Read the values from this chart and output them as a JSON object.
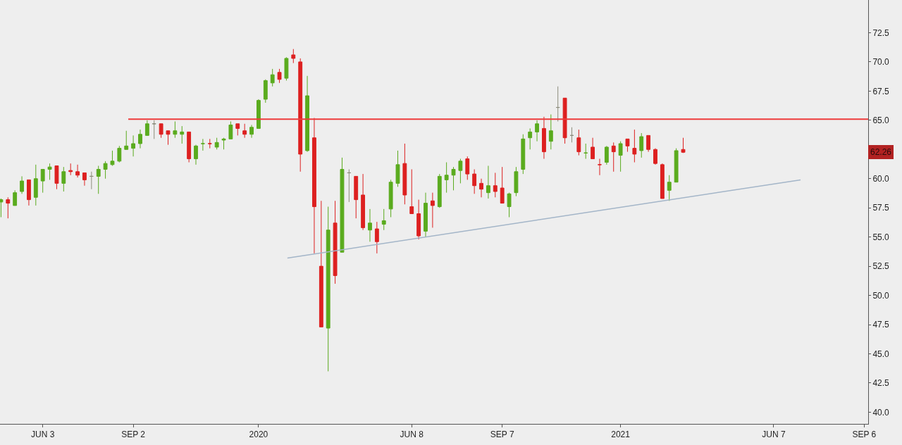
{
  "chart_data": {
    "type": "candlestick",
    "x": [
      "2019-04-22",
      "2019-04-29",
      "2019-05-06",
      "2019-05-13",
      "2019-05-20",
      "2019-05-27",
      "2019-06-03",
      "2019-06-10",
      "2019-06-17",
      "2019-06-24",
      "2019-07-01",
      "2019-07-08",
      "2019-07-15",
      "2019-07-22",
      "2019-07-29",
      "2019-08-05",
      "2019-08-12",
      "2019-08-19",
      "2019-08-26",
      "2019-09-02",
      "2019-09-09",
      "2019-09-16",
      "2019-09-23",
      "2019-09-30",
      "2019-10-07",
      "2019-10-14",
      "2019-10-21",
      "2019-10-28",
      "2019-11-04",
      "2019-11-11",
      "2019-11-18",
      "2019-11-25",
      "2019-12-02",
      "2019-12-09",
      "2019-12-16",
      "2019-12-23",
      "2019-12-30",
      "2020-01-06",
      "2020-01-13",
      "2020-01-20",
      "2020-01-27",
      "2020-02-03",
      "2020-02-10",
      "2020-02-17",
      "2020-02-24",
      "2020-03-02",
      "2020-03-09",
      "2020-03-16",
      "2020-03-23",
      "2020-03-30",
      "2020-04-06",
      "2020-04-13",
      "2020-04-20",
      "2020-04-27",
      "2020-05-04",
      "2020-05-11",
      "2020-05-18",
      "2020-05-25",
      "2020-06-01",
      "2020-06-08",
      "2020-06-15",
      "2020-06-22",
      "2020-06-29",
      "2020-07-06",
      "2020-07-13",
      "2020-07-20",
      "2020-07-27",
      "2020-08-03",
      "2020-08-10",
      "2020-08-17",
      "2020-08-24",
      "2020-08-31",
      "2020-09-07",
      "2020-09-14",
      "2020-09-21",
      "2020-09-28",
      "2020-10-05",
      "2020-10-12",
      "2020-10-19",
      "2020-10-26",
      "2020-11-02",
      "2020-11-09",
      "2020-11-16",
      "2020-11-23",
      "2020-11-30",
      "2020-12-07",
      "2020-12-14",
      "2020-12-21",
      "2020-12-28",
      "2021-01-04",
      "2021-01-11",
      "2021-01-18",
      "2021-01-25",
      "2021-02-01",
      "2021-02-08",
      "2021-02-15",
      "2021-02-22",
      "2021-03-01",
      "2021-03-08"
    ],
    "ohlc": [
      [
        58.0,
        58.3,
        56.7,
        58.2
      ],
      [
        58.2,
        58.4,
        56.6,
        57.9
      ],
      [
        57.7,
        59.0,
        57.7,
        58.8
      ],
      [
        58.9,
        60.2,
        58.7,
        59.8
      ],
      [
        59.9,
        59.9,
        57.7,
        58.2
      ],
      [
        58.4,
        61.2,
        57.7,
        60.0
      ],
      [
        59.8,
        60.8,
        58.8,
        60.8
      ],
      [
        60.8,
        61.3,
        59.9,
        61.0
      ],
      [
        61.1,
        61.1,
        59.1,
        59.6
      ],
      [
        59.6,
        61.0,
        58.9,
        60.6
      ],
      [
        60.7,
        61.3,
        60.3,
        60.6
      ],
      [
        60.6,
        61.2,
        60.1,
        60.3
      ],
      [
        60.5,
        60.5,
        59.4,
        59.9
      ],
      [
        60.2,
        60.6,
        59.1,
        60.2
      ],
      [
        60.2,
        61.1,
        58.7,
        60.8
      ],
      [
        60.8,
        61.5,
        60.0,
        61.3
      ],
      [
        61.2,
        62.4,
        61.1,
        61.5
      ],
      [
        61.5,
        62.8,
        61.4,
        62.6
      ],
      [
        62.5,
        64.1,
        62.5,
        62.8
      ],
      [
        62.6,
        63.7,
        61.9,
        63.0
      ],
      [
        63.0,
        64.2,
        62.6,
        63.8
      ],
      [
        63.7,
        65.0,
        63.7,
        64.7
      ],
      [
        64.7,
        65.0,
        63.4,
        64.7
      ],
      [
        64.7,
        64.7,
        63.5,
        63.8
      ],
      [
        64.1,
        64.1,
        62.9,
        63.8
      ],
      [
        63.8,
        64.9,
        63.5,
        64.1
      ],
      [
        63.8,
        64.5,
        63.0,
        64.0
      ],
      [
        64.0,
        64.0,
        61.4,
        61.7
      ],
      [
        61.7,
        62.9,
        61.2,
        62.8
      ],
      [
        63.0,
        63.4,
        62.4,
        63.0
      ],
      [
        63.0,
        63.4,
        62.6,
        63.0
      ],
      [
        62.7,
        63.5,
        62.5,
        63.1
      ],
      [
        63.3,
        63.5,
        62.5,
        63.4
      ],
      [
        63.4,
        64.9,
        63.4,
        64.6
      ],
      [
        64.7,
        64.7,
        63.7,
        64.3
      ],
      [
        64.1,
        64.7,
        63.5,
        63.8
      ],
      [
        63.8,
        64.6,
        63.5,
        64.4
      ],
      [
        64.3,
        66.8,
        64.3,
        66.7
      ],
      [
        66.8,
        68.5,
        66.5,
        68.4
      ],
      [
        68.2,
        69.4,
        67.9,
        68.9
      ],
      [
        69.1,
        69.4,
        68.2,
        68.5
      ],
      [
        68.6,
        70.4,
        68.4,
        70.3
      ],
      [
        70.6,
        71.1,
        69.9,
        70.3
      ],
      [
        70.0,
        70.3,
        60.6,
        62.1
      ],
      [
        62.4,
        68.8,
        62.3,
        67.1
      ],
      [
        63.5,
        65.2,
        53.6,
        57.6
      ],
      [
        52.5,
        58.1,
        47.3,
        47.3
      ],
      [
        47.2,
        57.6,
        43.5,
        55.6
      ],
      [
        56.2,
        58.1,
        51.0,
        51.7
      ],
      [
        53.7,
        61.8,
        53.7,
        60.8
      ],
      [
        60.5,
        60.8,
        58.0,
        60.5
      ],
      [
        60.2,
        60.2,
        56.6,
        58.2
      ],
      [
        58.6,
        60.4,
        55.6,
        55.8
      ],
      [
        55.6,
        57.4,
        54.6,
        56.2
      ],
      [
        55.7,
        56.3,
        53.6,
        54.6
      ],
      [
        56.1,
        57.4,
        55.6,
        56.4
      ],
      [
        57.4,
        59.9,
        56.7,
        59.7
      ],
      [
        59.6,
        62.4,
        59.3,
        61.2
      ],
      [
        61.3,
        63.0,
        57.8,
        58.6
      ],
      [
        57.6,
        60.8,
        57.0,
        57.0
      ],
      [
        57.0,
        58.2,
        54.8,
        55.1
      ],
      [
        55.5,
        58.8,
        55.0,
        57.9
      ],
      [
        58.1,
        58.8,
        55.8,
        57.7
      ],
      [
        57.6,
        60.4,
        57.5,
        60.2
      ],
      [
        59.9,
        61.4,
        58.8,
        60.3
      ],
      [
        60.3,
        61.0,
        59.0,
        60.8
      ],
      [
        60.7,
        61.7,
        59.6,
        61.5
      ],
      [
        61.7,
        61.9,
        59.9,
        60.4
      ],
      [
        60.4,
        60.8,
        58.7,
        59.4
      ],
      [
        59.6,
        60.0,
        58.4,
        59.1
      ],
      [
        58.8,
        61.1,
        58.3,
        59.4
      ],
      [
        59.4,
        60.5,
        58.4,
        58.9
      ],
      [
        59.2,
        61.0,
        57.9,
        57.9
      ],
      [
        57.6,
        58.8,
        56.7,
        58.7
      ],
      [
        58.8,
        61.0,
        58.5,
        60.6
      ],
      [
        60.8,
        63.8,
        60.4,
        63.4
      ],
      [
        63.5,
        64.3,
        62.5,
        64.0
      ],
      [
        64.0,
        65.0,
        63.2,
        64.7
      ],
      [
        64.3,
        65.3,
        61.7,
        62.3
      ],
      [
        63.2,
        65.5,
        62.5,
        64.1
      ],
      [
        66.1,
        67.9,
        64.9,
        66.1
      ],
      [
        66.9,
        66.9,
        63.0,
        63.5
      ],
      [
        63.7,
        64.4,
        63.1,
        63.7
      ],
      [
        63.5,
        64.2,
        62.0,
        62.3
      ],
      [
        62.2,
        63.0,
        61.7,
        62.2
      ],
      [
        62.7,
        63.5,
        61.7,
        61.7
      ],
      [
        61.2,
        61.7,
        60.3,
        61.2
      ],
      [
        61.4,
        62.8,
        61.2,
        62.7
      ],
      [
        62.8,
        63.1,
        60.6,
        62.3
      ],
      [
        62.0,
        63.2,
        60.6,
        63.0
      ],
      [
        63.4,
        63.4,
        62.3,
        62.8
      ],
      [
        62.6,
        64.2,
        61.4,
        62.1
      ],
      [
        62.4,
        63.9,
        61.8,
        63.6
      ],
      [
        63.7,
        63.7,
        62.3,
        62.5
      ],
      [
        62.5,
        62.6,
        61.2,
        61.3
      ],
      [
        61.2,
        61.3,
        58.3,
        58.3
      ],
      [
        59.0,
        60.3,
        58.1,
        59.7
      ],
      [
        59.7,
        62.6,
        59.7,
        62.4
      ],
      [
        62.5,
        63.5,
        62.2,
        62.26
      ]
    ],
    "colors": [
      "#5aab1e",
      "#dd2020",
      "#5aab1e",
      "#5aab1e",
      "#dd2020",
      "#5aab1e",
      "#5aab1e",
      "#5aab1e",
      "#dd2020",
      "#5aab1e",
      "#dd2020",
      "#dd2020",
      "#dd2020",
      "#8c8c7c",
      "#5aab1e",
      "#5aab1e",
      "#5aab1e",
      "#5aab1e",
      "#5aab1e",
      "#5aab1e",
      "#5aab1e",
      "#5aab1e",
      "#8c8c7c",
      "#dd2020",
      "#dd2020",
      "#5aab1e",
      "#5aab1e",
      "#dd2020",
      "#5aab1e",
      "#5aab1e",
      "#dd2020",
      "#5aab1e",
      "#5aab1e",
      "#5aab1e",
      "#dd2020",
      "#dd2020",
      "#5aab1e",
      "#5aab1e",
      "#5aab1e",
      "#5aab1e",
      "#dd2020",
      "#5aab1e",
      "#dd2020",
      "#dd2020",
      "#5aab1e",
      "#dd2020",
      "#dd2020",
      "#5aab1e",
      "#dd2020",
      "#5aab1e",
      "#8c8c7c",
      "#dd2020",
      "#dd2020",
      "#5aab1e",
      "#dd2020",
      "#5aab1e",
      "#5aab1e",
      "#5aab1e",
      "#dd2020",
      "#dd2020",
      "#dd2020",
      "#5aab1e",
      "#dd2020",
      "#5aab1e",
      "#5aab1e",
      "#5aab1e",
      "#5aab1e",
      "#dd2020",
      "#dd2020",
      "#dd2020",
      "#5aab1e",
      "#dd2020",
      "#dd2020",
      "#5aab1e",
      "#5aab1e",
      "#5aab1e",
      "#5aab1e",
      "#5aab1e",
      "#dd2020",
      "#5aab1e",
      "#8c8c7c",
      "#dd2020",
      "#8c8c7c",
      "#dd2020",
      "#5aab1e",
      "#dd2020",
      "#dd2020",
      "#5aab1e",
      "#dd2020",
      "#5aab1e",
      "#dd2020",
      "#dd2020",
      "#5aab1e",
      "#dd2020",
      "#dd2020",
      "#dd2020",
      "#5aab1e",
      "#5aab1e",
      "#dd2020"
    ],
    "series": [
      {
        "type": "line",
        "x": [
          "2019-08-28",
          "2021-09-10"
        ],
        "values": [
          65.1,
          65.1
        ],
        "color": "#ee3b3b"
      },
      {
        "type": "line",
        "x": [
          "2020-02-04",
          "2021-07-04"
        ],
        "values": [
          53.2,
          59.9
        ],
        "color": "#a3b5c8"
      }
    ],
    "annotations": [
      {
        "text": "62.26",
        "y": 62.26
      }
    ],
    "xlim": [
      "2019-04-21",
      "2021-09-10"
    ],
    "xticks": [
      {
        "value": "2019-06-03",
        "label": "JUN 3"
      },
      {
        "value": "2019-09-02",
        "label": "SEP 2"
      },
      {
        "value": "2020-01-06",
        "label": "2020"
      },
      {
        "value": "2020-06-08",
        "label": "JUN 8"
      },
      {
        "value": "2020-09-07",
        "label": "SEP 7"
      },
      {
        "value": "2021-01-04",
        "label": "2021"
      },
      {
        "value": "2021-06-07",
        "label": "JUN 7"
      },
      {
        "value": "2021-09-06",
        "label": "SEP 6"
      }
    ],
    "ylim": [
      39.0,
      75.3
    ],
    "yticks": [
      {
        "value": 40,
        "label": "40.0"
      },
      {
        "value": 42.5,
        "label": "42.5"
      },
      {
        "value": 45,
        "label": "45.0"
      },
      {
        "value": 47.5,
        "label": "47.5"
      },
      {
        "value": 50,
        "label": "50.0"
      },
      {
        "value": 52.5,
        "label": "52.5"
      },
      {
        "value": 55,
        "label": "55.0"
      },
      {
        "value": 57.5,
        "label": "57.5"
      },
      {
        "value": 60,
        "label": "60.0"
      },
      {
        "value": 65,
        "label": "65.0"
      },
      {
        "value": 67.5,
        "label": "67.5"
      },
      {
        "value": 70,
        "label": "70.0"
      },
      {
        "value": 72.5,
        "label": "72.5"
      }
    ],
    "grid": false
  }
}
